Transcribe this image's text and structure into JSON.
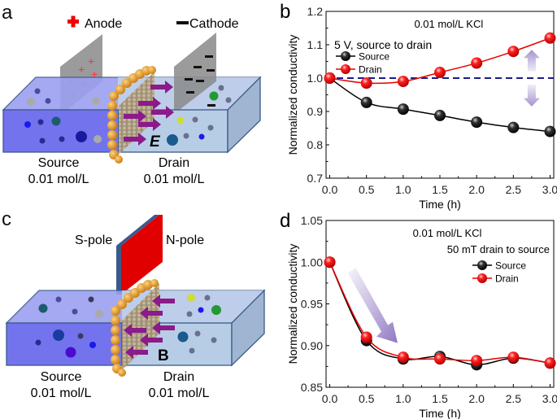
{
  "panels": {
    "a": {
      "letter": "a",
      "anode_label": "Anode",
      "cathode_label": "Cathode",
      "field_label": "E",
      "source_label": "Source",
      "source_conc": "0.01 mol/L",
      "drain_label": "Drain",
      "drain_conc": "0.01 mol/L"
    },
    "c": {
      "letter": "c",
      "s_pole_label": "S-pole",
      "n_pole_label": "N-pole",
      "field_label": "B",
      "source_label": "Source",
      "source_conc": "0.01 mol/L",
      "drain_label": "Drain",
      "drain_conc": "0.01 mol/L"
    }
  },
  "colors": {
    "source_series": "#000000",
    "drain_series": "#e60000",
    "reference_line": "#1a1a8c",
    "arrow": "#9b87c9",
    "source_tank": "#7b7bf0",
    "drain_tank": "#b7cde6",
    "membrane": "#d9952a",
    "flux_arrow": "#8b1a8b",
    "magnet_n": "#e00000",
    "magnet_s": "#3a5a8c"
  },
  "chart_data": [
    {
      "panel": "b",
      "letter": "b",
      "type": "line",
      "title": "0.01 mol/L KCl",
      "annotation": "5 V, source to drain",
      "xlabel": "Time (h)",
      "ylabel": "Normalized conductivity",
      "x": [
        0.0,
        0.5,
        1.0,
        1.5,
        2.0,
        2.5,
        3.0
      ],
      "xlim": [
        -0.05,
        3.05
      ],
      "ylim": [
        0.7,
        1.2
      ],
      "xticks": [
        "0.0",
        "0.5",
        "1.0",
        "1.5",
        "2.0",
        "2.5",
        "3.0"
      ],
      "yticks": [
        "0.7",
        "0.8",
        "0.9",
        "1.0",
        "1.1",
        "1.2"
      ],
      "ytick_values": [
        0.7,
        0.8,
        0.9,
        1.0,
        1.1,
        1.2
      ],
      "reference_line": 1.0,
      "legend_position": "upper-left",
      "series": [
        {
          "name": "Source",
          "values": [
            1.0,
            0.927,
            0.907,
            0.888,
            0.868,
            0.852,
            0.84
          ]
        },
        {
          "name": "Drain",
          "values": [
            1.0,
            0.985,
            0.99,
            1.017,
            1.045,
            1.08,
            1.12
          ]
        }
      ],
      "arrows": "double-headed up/down at t≈2.75 h"
    },
    {
      "panel": "d",
      "letter": "d",
      "type": "line",
      "title": "0.01 mol/L KCl",
      "annotation": "50 mT drain to source",
      "xlabel": "Time (h)",
      "ylabel": "Normalized conductivity",
      "x": [
        0.0,
        0.5,
        1.0,
        1.5,
        2.0,
        2.5,
        3.0
      ],
      "xlim": [
        -0.05,
        3.05
      ],
      "ylim": [
        0.85,
        1.05
      ],
      "xticks": [
        "0.0",
        "0.5",
        "1.0",
        "1.5",
        "2.0",
        "2.5",
        "3.0"
      ],
      "yticks": [
        "0.85",
        "0.90",
        "0.95",
        "1.00",
        "1.05"
      ],
      "ytick_values": [
        0.85,
        0.9,
        0.95,
        1.0,
        1.05
      ],
      "legend_position": "upper-right",
      "series": [
        {
          "name": "Source",
          "values": [
            1.0,
            0.906,
            0.884,
            0.887,
            0.877,
            0.885,
            0.879
          ]
        },
        {
          "name": "Drain",
          "values": [
            1.0,
            0.91,
            0.886,
            0.884,
            0.882,
            0.886,
            0.879
          ]
        }
      ],
      "arrows": "single downward diagonal arrow from t≈0.3 to t≈0.9"
    }
  ]
}
